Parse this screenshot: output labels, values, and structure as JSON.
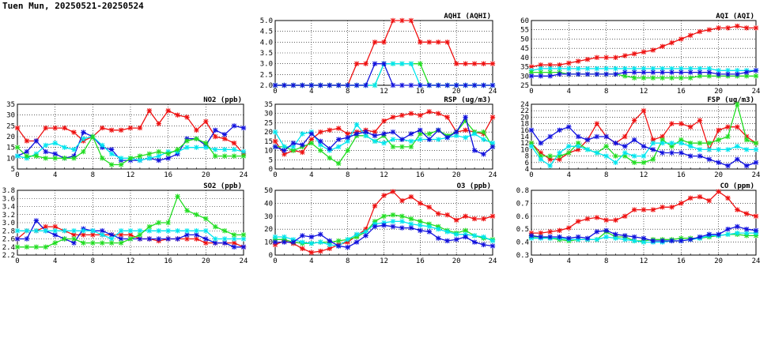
{
  "page_title": "Tuen Mun, 20250521-20250524",
  "colors": {
    "red": "#ee1111",
    "blue": "#1111dd",
    "cyan": "#00e5ee",
    "green": "#22dd22"
  },
  "chart_data": [
    {
      "type": "line",
      "title": "AQHI (AQHI)",
      "xlim": [
        0,
        24
      ],
      "xticks": [
        "0",
        "4",
        "8",
        "12",
        "16",
        "20",
        "24"
      ],
      "ylim": [
        2.0,
        5.0
      ],
      "yticks": [
        "2.0",
        "2.5",
        "3.0",
        "3.5",
        "4.0",
        "4.5",
        "5.0"
      ],
      "grid": true,
      "series": [
        {
          "color": "red",
          "values": [
            2,
            2,
            2,
            2,
            2,
            2,
            2,
            2,
            2,
            3,
            3,
            4,
            4,
            5,
            5,
            5,
            4,
            4,
            4,
            4,
            3,
            3,
            3,
            3,
            3
          ]
        },
        {
          "color": "green",
          "values": [
            2,
            2,
            2,
            2,
            2,
            2,
            2,
            2,
            2,
            2,
            2,
            2,
            3,
            3,
            3,
            3,
            3,
            2,
            2,
            2,
            2,
            2,
            2,
            2,
            2
          ]
        },
        {
          "color": "cyan",
          "values": [
            2,
            2,
            2,
            2,
            2,
            2,
            2,
            2,
            2,
            2,
            2,
            2,
            3,
            3,
            3,
            3,
            2,
            2,
            2,
            2,
            2,
            2,
            2,
            2,
            2
          ]
        },
        {
          "color": "blue",
          "values": [
            2,
            2,
            2,
            2,
            2,
            2,
            2,
            2,
            2,
            2,
            2,
            3,
            3,
            2,
            2,
            2,
            2,
            2,
            2,
            2,
            2,
            2,
            2,
            2,
            2
          ]
        }
      ]
    },
    {
      "type": "line",
      "title": "AQI (AQI)",
      "xlim": [
        0,
        24
      ],
      "xticks": [
        "0",
        "4",
        "8",
        "12",
        "16",
        "20",
        "24"
      ],
      "ylim": [
        25,
        60
      ],
      "yticks": [
        "25",
        "30",
        "35",
        "40",
        "45",
        "50",
        "55",
        "60"
      ],
      "grid": true,
      "series": [
        {
          "color": "red",
          "values": [
            35,
            36,
            36,
            36,
            37,
            38,
            39,
            40,
            40,
            40,
            41,
            42,
            43,
            44,
            46,
            48,
            50,
            52,
            54,
            55,
            56,
            56,
            57,
            56,
            56
          ]
        },
        {
          "color": "cyan",
          "values": [
            33,
            34,
            34,
            34,
            34,
            34,
            34,
            34,
            34,
            34,
            34,
            34,
            34,
            34,
            34,
            34,
            34,
            34,
            34,
            34,
            33,
            33,
            33,
            33,
            33
          ]
        },
        {
          "color": "green",
          "values": [
            32,
            32,
            32,
            32,
            31,
            31,
            31,
            31,
            31,
            31,
            30,
            29,
            29,
            29,
            29,
            29,
            29,
            29,
            30,
            30,
            30,
            30,
            30,
            30,
            30
          ]
        },
        {
          "color": "blue",
          "values": [
            30,
            30,
            30,
            31,
            31,
            31,
            31,
            31,
            31,
            31,
            32,
            32,
            32,
            32,
            32,
            32,
            32,
            32,
            32,
            32,
            31,
            31,
            31,
            32,
            33
          ]
        }
      ]
    },
    {
      "type": "line",
      "title": "NO2 (ppb)",
      "xlim": [
        0,
        24
      ],
      "xticks": [
        "0",
        "4",
        "8",
        "12",
        "16",
        "20",
        "24"
      ],
      "ylim": [
        5,
        35
      ],
      "yticks": [
        "5",
        "10",
        "15",
        "20",
        "25",
        "30",
        "35"
      ],
      "grid": true,
      "series": [
        {
          "color": "red",
          "values": [
            24,
            18,
            18,
            24,
            24,
            24,
            22,
            18,
            20,
            24,
            23,
            23,
            24,
            24,
            32,
            26,
            32,
            30,
            29,
            23,
            27,
            20,
            19,
            17,
            12
          ]
        },
        {
          "color": "blue",
          "values": [
            11,
            13,
            18,
            13,
            12,
            10,
            11,
            22,
            20,
            15,
            14,
            9,
            9,
            9,
            10,
            9,
            10,
            12,
            19,
            19,
            16,
            23,
            21,
            25,
            24
          ]
        },
        {
          "color": "cyan",
          "values": [
            11,
            10,
            12,
            16,
            17,
            15,
            14,
            19,
            20,
            16,
            12,
            10,
            10,
            9,
            10,
            11,
            13,
            13,
            15,
            15,
            15,
            14,
            14,
            14,
            13
          ]
        },
        {
          "color": "green",
          "values": [
            15,
            11,
            11,
            10,
            10,
            10,
            10,
            13,
            20,
            10,
            7,
            7,
            10,
            11,
            12,
            13,
            12,
            14,
            18,
            19,
            17,
            11,
            11,
            11,
            11
          ]
        }
      ]
    },
    {
      "type": "line",
      "title": "RSP (ug/m3)",
      "xlim": [
        0,
        24
      ],
      "xticks": [
        "0",
        "4",
        "8",
        "12",
        "16",
        "20",
        "24"
      ],
      "ylim": [
        0,
        35
      ],
      "yticks": [
        "0",
        "5",
        "10",
        "15",
        "20",
        "25",
        "30",
        "35"
      ],
      "grid": true,
      "series": [
        {
          "color": "red",
          "values": [
            15,
            8,
            10,
            9,
            16,
            20,
            21,
            22,
            19,
            20,
            21,
            20,
            26,
            28,
            29,
            30,
            29,
            31,
            30,
            28,
            20,
            21,
            20,
            19,
            28
          ]
        },
        {
          "color": "green",
          "values": [
            12,
            12,
            10,
            12,
            14,
            10,
            6,
            3,
            10,
            18,
            18,
            15,
            18,
            12,
            12,
            12,
            19,
            19,
            21,
            18,
            20,
            26,
            20,
            20,
            12
          ]
        },
        {
          "color": "cyan",
          "values": [
            20,
            12,
            12,
            19,
            20,
            13,
            10,
            12,
            15,
            24,
            18,
            15,
            14,
            16,
            16,
            15,
            16,
            16,
            16,
            17,
            18,
            17,
            19,
            16,
            14
          ]
        },
        {
          "color": "blue",
          "values": [
            12,
            10,
            14,
            13,
            19,
            15,
            11,
            16,
            17,
            19,
            20,
            18,
            19,
            20,
            16,
            19,
            21,
            16,
            21,
            17,
            20,
            28,
            10,
            8,
            12
          ]
        }
      ]
    },
    {
      "type": "line",
      "title": "FSP (ug/m3)",
      "xlim": [
        0,
        24
      ],
      "xticks": [
        "0",
        "4",
        "8",
        "12",
        "16",
        "20",
        "24"
      ],
      "ylim": [
        4,
        24
      ],
      "yticks": [
        "4",
        "6",
        "8",
        "10",
        "12",
        "14",
        "16",
        "18",
        "20",
        "22",
        "24"
      ],
      "grid": true,
      "series": [
        {
          "color": "red",
          "values": [
            12,
            9,
            7,
            7,
            9,
            10,
            13,
            18,
            14,
            12,
            14,
            19,
            22,
            13,
            14,
            18,
            18,
            17,
            19,
            10,
            16,
            17,
            17,
            14,
            12
          ]
        },
        {
          "color": "green",
          "values": [
            12,
            8,
            8,
            8,
            9,
            12,
            10,
            9,
            11,
            8,
            8,
            6,
            6,
            7,
            13,
            11,
            13,
            12,
            12,
            12,
            13,
            14,
            24,
            13,
            12
          ]
        },
        {
          "color": "cyan",
          "values": [
            11,
            7,
            5,
            9,
            11,
            11,
            10,
            9,
            8,
            6,
            9,
            8,
            8,
            12,
            12,
            12,
            12,
            11,
            10,
            10,
            10,
            10,
            11,
            10,
            10
          ]
        },
        {
          "color": "blue",
          "values": [
            16,
            12,
            14,
            16,
            17,
            14,
            13,
            14,
            14,
            12,
            11,
            13,
            11,
            10,
            9,
            9,
            9,
            8,
            8,
            7,
            6,
            5,
            7,
            5,
            6
          ]
        }
      ]
    },
    {
      "type": "line",
      "title": "SO2 (ppb)",
      "xlim": [
        0,
        24
      ],
      "xticks": [
        "0",
        "4",
        "8",
        "12",
        "16",
        "20",
        "24"
      ],
      "ylim": [
        2.2,
        3.8
      ],
      "yticks": [
        "2.2",
        "2.4",
        "2.6",
        "2.8",
        "3.0",
        "3.2",
        "3.4",
        "3.6",
        "3.8"
      ],
      "grid": true,
      "series": [
        {
          "color": "red",
          "values": [
            2.6,
            2.8,
            2.8,
            2.9,
            2.9,
            2.8,
            2.7,
            2.7,
            2.7,
            2.7,
            2.7,
            2.7,
            2.7,
            2.6,
            2.6,
            2.55,
            2.6,
            2.6,
            2.6,
            2.6,
            2.5,
            2.5,
            2.5,
            2.5,
            2.4
          ]
        },
        {
          "color": "blue",
          "values": [
            2.6,
            2.6,
            3.05,
            2.8,
            2.7,
            2.6,
            2.5,
            2.85,
            2.8,
            2.8,
            2.7,
            2.6,
            2.6,
            2.6,
            2.6,
            2.6,
            2.6,
            2.6,
            2.7,
            2.7,
            2.6,
            2.5,
            2.5,
            2.4,
            2.4
          ]
        },
        {
          "color": "cyan",
          "values": [
            2.8,
            2.8,
            2.8,
            2.8,
            2.8,
            2.8,
            2.8,
            2.8,
            2.8,
            2.7,
            2.6,
            2.8,
            2.8,
            2.8,
            2.8,
            2.8,
            2.8,
            2.8,
            2.8,
            2.8,
            2.8,
            2.6,
            2.6,
            2.6,
            2.6
          ]
        },
        {
          "color": "green",
          "values": [
            2.4,
            2.4,
            2.4,
            2.4,
            2.5,
            2.6,
            2.6,
            2.5,
            2.5,
            2.5,
            2.5,
            2.5,
            2.6,
            2.7,
            2.9,
            3.0,
            3.0,
            3.65,
            3.3,
            3.2,
            3.1,
            2.9,
            2.8,
            2.7,
            2.7
          ]
        }
      ]
    },
    {
      "type": "line",
      "title": "O3 (ppb)",
      "xlim": [
        0,
        24
      ],
      "xticks": [
        "0",
        "4",
        "8",
        "12",
        "16",
        "20",
        "24"
      ],
      "ylim": [
        0,
        50
      ],
      "yticks": [
        "0",
        "10",
        "20",
        "30",
        "40",
        "50"
      ],
      "grid": true,
      "series": [
        {
          "color": "red",
          "values": [
            8,
            11,
            9,
            5,
            2,
            3,
            5,
            8,
            10,
            15,
            20,
            38,
            46,
            49,
            42,
            45,
            40,
            37,
            32,
            31,
            27,
            30,
            28,
            28,
            30
          ]
        },
        {
          "color": "green",
          "values": [
            12,
            12,
            10,
            9,
            9,
            10,
            10,
            11,
            12,
            14,
            18,
            26,
            30,
            31,
            30,
            28,
            26,
            24,
            22,
            19,
            17,
            19,
            15,
            13,
            12
          ]
        },
        {
          "color": "cyan",
          "values": [
            14,
            14,
            12,
            10,
            9,
            10,
            8,
            7,
            12,
            16,
            18,
            24,
            25,
            26,
            26,
            24,
            23,
            22,
            20,
            18,
            16,
            16,
            15,
            14,
            11
          ]
        },
        {
          "color": "blue",
          "values": [
            10,
            10,
            10,
            15,
            14,
            16,
            11,
            7,
            6,
            10,
            15,
            22,
            23,
            22,
            21,
            21,
            19,
            18,
            13,
            11,
            12,
            14,
            10,
            8,
            7
          ]
        }
      ]
    },
    {
      "type": "line",
      "title": "CO (ppm)",
      "xlim": [
        0,
        24
      ],
      "xticks": [
        "0",
        "4",
        "8",
        "12",
        "16",
        "20",
        "24"
      ],
      "ylim": [
        0.3,
        0.8
      ],
      "yticks": [
        "0.3",
        "0.4",
        "0.5",
        "0.6",
        "0.7",
        "0.8"
      ],
      "grid": true,
      "series": [
        {
          "color": "red",
          "values": [
            0.47,
            0.47,
            0.48,
            0.49,
            0.51,
            0.56,
            0.58,
            0.59,
            0.57,
            0.57,
            0.6,
            0.65,
            0.65,
            0.65,
            0.67,
            0.67,
            0.7,
            0.74,
            0.75,
            0.72,
            0.79,
            0.74,
            0.65,
            0.62,
            0.6
          ]
        },
        {
          "color": "green",
          "values": [
            0.44,
            0.44,
            0.43,
            0.42,
            0.41,
            0.42,
            0.42,
            0.42,
            0.48,
            0.44,
            0.44,
            0.41,
            0.41,
            0.42,
            0.42,
            0.42,
            0.43,
            0.43,
            0.43,
            0.44,
            0.45,
            0.46,
            0.46,
            0.45,
            0.45
          ]
        },
        {
          "color": "cyan",
          "values": [
            0.43,
            0.43,
            0.43,
            0.43,
            0.42,
            0.42,
            0.42,
            0.42,
            0.44,
            0.43,
            0.42,
            0.41,
            0.4,
            0.4,
            0.4,
            0.41,
            0.41,
            0.42,
            0.43,
            0.45,
            0.45,
            0.46,
            0.47,
            0.47,
            0.47
          ]
        },
        {
          "color": "blue",
          "values": [
            0.45,
            0.44,
            0.44,
            0.44,
            0.43,
            0.44,
            0.43,
            0.48,
            0.49,
            0.46,
            0.45,
            0.44,
            0.43,
            0.41,
            0.41,
            0.41,
            0.41,
            0.42,
            0.44,
            0.46,
            0.46,
            0.5,
            0.52,
            0.5,
            0.49
          ]
        }
      ]
    }
  ]
}
